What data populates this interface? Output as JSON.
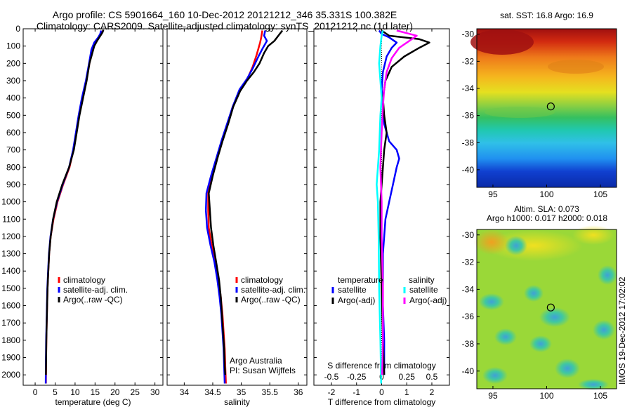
{
  "header": {
    "line1": "Argo profile: CS 5901664_160 10-Dec-2012 20121212_346 35.331S 100.382E",
    "line2": "Climatology: CARS2009. Satellite-adjusted climatology: synTS_20121212.nc (1d later)"
  },
  "footer_credit": {
    "line1": "Argo Australia",
    "line2": "PI: Susan Wijffels"
  },
  "watermark": "IMOS 19-Dec-2012 17:02:02",
  "colors": {
    "climatology": "#ff0000",
    "satellite": "#0000ff",
    "argo": "#000000",
    "salinity_satellite": "#00ffff",
    "salinity_argo": "#ff00ff"
  },
  "chart_data": [
    {
      "type": "line",
      "id": "temperature",
      "xlabel": "temperature (deg C)",
      "ylabel": "",
      "xlim": [
        -3,
        32
      ],
      "ylim": [
        2060,
        0
      ],
      "x_ticks": [
        0,
        5,
        10,
        15,
        20,
        25,
        30
      ],
      "y_ticks": [
        0,
        100,
        200,
        300,
        400,
        500,
        600,
        700,
        800,
        900,
        1000,
        1100,
        1200,
        1300,
        1400,
        1500,
        1600,
        1700,
        1800,
        1900,
        2000
      ],
      "legend": [
        "climatology",
        "satellite-adj. clim.",
        "Argo(..raw -QC)"
      ],
      "series": [
        {
          "name": "climatology",
          "color": "#ff0000",
          "points": [
            [
              17.0,
              10
            ],
            [
              16.6,
              30
            ],
            [
              16.0,
              50
            ],
            [
              15.0,
              80
            ],
            [
              14.3,
              120
            ],
            [
              13.6,
              200
            ],
            [
              12.8,
              300
            ],
            [
              11.8,
              400
            ],
            [
              11.0,
              500
            ],
            [
              10.3,
              600
            ],
            [
              9.6,
              700
            ],
            [
              8.6,
              800
            ],
            [
              7.0,
              900
            ],
            [
              5.6,
              1000
            ],
            [
              4.6,
              1100
            ],
            [
              3.9,
              1200
            ],
            [
              3.5,
              1300
            ],
            [
              3.3,
              1400
            ],
            [
              3.1,
              1500
            ],
            [
              3.0,
              1600
            ],
            [
              2.9,
              1700
            ],
            [
              2.8,
              1800
            ],
            [
              2.75,
              1900
            ],
            [
              2.7,
              2050
            ]
          ]
        },
        {
          "name": "satellite-adj. clim.",
          "color": "#0000ff",
          "points": [
            [
              16.5,
              10
            ],
            [
              16.3,
              30
            ],
            [
              15.8,
              50
            ],
            [
              14.8,
              80
            ],
            [
              14.1,
              120
            ],
            [
              13.5,
              200
            ],
            [
              12.7,
              300
            ],
            [
              11.7,
              400
            ],
            [
              10.9,
              500
            ],
            [
              10.2,
              600
            ],
            [
              9.5,
              700
            ],
            [
              8.5,
              800
            ],
            [
              6.9,
              900
            ],
            [
              5.5,
              1000
            ],
            [
              4.5,
              1100
            ],
            [
              3.85,
              1200
            ],
            [
              3.45,
              1300
            ],
            [
              3.25,
              1400
            ],
            [
              3.05,
              1500
            ],
            [
              2.95,
              1600
            ],
            [
              2.85,
              1700
            ],
            [
              2.75,
              1800
            ],
            [
              2.7,
              1900
            ],
            [
              2.65,
              2050
            ]
          ]
        },
        {
          "name": "Argo(..raw -QC)",
          "color": "#000000",
          "points": [
            [
              17.1,
              5
            ],
            [
              16.9,
              20
            ],
            [
              16.2,
              45
            ],
            [
              15.5,
              70
            ],
            [
              14.8,
              100
            ],
            [
              14.2,
              150
            ],
            [
              13.6,
              200
            ],
            [
              12.9,
              300
            ],
            [
              12.0,
              400
            ],
            [
              11.1,
              500
            ],
            [
              10.4,
              600
            ],
            [
              9.7,
              700
            ],
            [
              8.5,
              800
            ],
            [
              6.8,
              900
            ],
            [
              5.4,
              1000
            ],
            [
              4.5,
              1100
            ],
            [
              3.9,
              1200
            ],
            [
              3.5,
              1300
            ],
            [
              3.3,
              1400
            ],
            [
              3.1,
              1500
            ],
            [
              3.0,
              1600
            ],
            [
              2.9,
              1700
            ],
            [
              2.8,
              1800
            ],
            [
              2.75,
              1900
            ],
            [
              2.7,
              2000
            ]
          ]
        }
      ]
    },
    {
      "type": "line",
      "id": "salinity",
      "xlabel": "salinity",
      "ylabel": "",
      "xlim": [
        33.7,
        36.15
      ],
      "ylim": [
        2060,
        0
      ],
      "x_ticks": [
        34,
        34.5,
        35,
        35.5,
        36
      ],
      "y_ticks": [
        0,
        100,
        200,
        300,
        400,
        500,
        600,
        700,
        800,
        900,
        1000,
        1100,
        1200,
        1300,
        1400,
        1500,
        1600,
        1700,
        1800,
        1900,
        2000
      ],
      "legend": [
        "climatology",
        "satellite-adj. clim.",
        "Argo(..raw -QC)"
      ],
      "series": [
        {
          "name": "climatology",
          "color": "#ff0000",
          "points": [
            [
              35.37,
              10
            ],
            [
              35.35,
              50
            ],
            [
              35.33,
              80
            ],
            [
              35.27,
              150
            ],
            [
              35.2,
              220
            ],
            [
              35.12,
              280
            ],
            [
              34.98,
              350
            ],
            [
              34.85,
              450
            ],
            [
              34.76,
              550
            ],
            [
              34.66,
              650
            ],
            [
              34.57,
              750
            ],
            [
              34.49,
              850
            ],
            [
              34.42,
              950
            ],
            [
              34.42,
              1050
            ],
            [
              34.43,
              1150
            ],
            [
              34.48,
              1250
            ],
            [
              34.55,
              1350
            ],
            [
              34.6,
              1450
            ],
            [
              34.64,
              1550
            ],
            [
              34.67,
              1650
            ],
            [
              34.69,
              1750
            ],
            [
              34.71,
              1850
            ],
            [
              34.72,
              1950
            ],
            [
              34.73,
              2050
            ]
          ]
        },
        {
          "name": "satellite-adj. clim.",
          "color": "#0000ff",
          "points": [
            [
              35.42,
              10
            ],
            [
              35.4,
              40
            ],
            [
              35.45,
              70
            ],
            [
              35.38,
              110
            ],
            [
              35.3,
              160
            ],
            [
              35.2,
              230
            ],
            [
              35.1,
              290
            ],
            [
              34.97,
              350
            ],
            [
              34.85,
              450
            ],
            [
              34.75,
              550
            ],
            [
              34.65,
              650
            ],
            [
              34.56,
              750
            ],
            [
              34.47,
              850
            ],
            [
              34.39,
              950
            ],
            [
              34.38,
              1050
            ],
            [
              34.4,
              1150
            ],
            [
              34.46,
              1250
            ],
            [
              34.53,
              1350
            ],
            [
              34.58,
              1450
            ],
            [
              34.62,
              1550
            ],
            [
              34.65,
              1650
            ],
            [
              34.67,
              1750
            ],
            [
              34.69,
              1850
            ],
            [
              34.7,
              1950
            ],
            [
              34.71,
              2050
            ]
          ]
        },
        {
          "name": "Argo(..raw -QC)",
          "color": "#000000",
          "points": [
            [
              35.72,
              10
            ],
            [
              35.65,
              40
            ],
            [
              35.58,
              70
            ],
            [
              35.47,
              100
            ],
            [
              35.4,
              140
            ],
            [
              35.32,
              200
            ],
            [
              35.22,
              250
            ],
            [
              35.1,
              300
            ],
            [
              34.98,
              360
            ],
            [
              34.86,
              450
            ],
            [
              34.77,
              550
            ],
            [
              34.67,
              650
            ],
            [
              34.58,
              750
            ],
            [
              34.5,
              850
            ],
            [
              34.43,
              950
            ],
            [
              34.45,
              1050
            ],
            [
              34.47,
              1150
            ],
            [
              34.51,
              1250
            ],
            [
              34.56,
              1350
            ],
            [
              34.61,
              1450
            ],
            [
              34.64,
              1550
            ],
            [
              34.66,
              1650
            ],
            [
              34.68,
              1750
            ],
            [
              34.7,
              1850
            ],
            [
              34.71,
              1950
            ],
            [
              34.72,
              2000
            ]
          ]
        }
      ]
    },
    {
      "type": "line",
      "id": "difference",
      "xlabel": "T difference from climatology",
      "top_label": "S difference from climatology",
      "ylabel": "",
      "xlim": [
        -2.7,
        2.7
      ],
      "ylim": [
        2060,
        0
      ],
      "x_ticks": [
        -2,
        -1,
        0,
        1,
        2
      ],
      "s_ticks": [
        -0.5,
        -0.25,
        0,
        0.25,
        0.5
      ],
      "s_tick_labels": [
        "-0.5",
        "-0.25",
        "0",
        "0.25",
        "0.5"
      ],
      "s_scale": 4,
      "y_ticks": [
        0,
        100,
        200,
        300,
        400,
        500,
        600,
        700,
        800,
        900,
        1000,
        1100,
        1200,
        1300,
        1400,
        1500,
        1600,
        1700,
        1800,
        1900,
        2000
      ],
      "legend_headers": [
        "temperature",
        "salinity"
      ],
      "legend": [
        "satellite",
        "Argo(-adj)",
        "satellite",
        "Argo(-adj)"
      ],
      "series": [
        {
          "name": "temperature satellite",
          "color": "#0000ff",
          "points": [
            [
              -0.1,
              10
            ],
            [
              0.0,
              30
            ],
            [
              0.3,
              50
            ],
            [
              0.6,
              80
            ],
            [
              0.4,
              110
            ],
            [
              0.2,
              160
            ],
            [
              0.05,
              250
            ],
            [
              0.0,
              350
            ],
            [
              0.05,
              450
            ],
            [
              0.1,
              550
            ],
            [
              0.3,
              650
            ],
            [
              0.6,
              700
            ],
            [
              0.7,
              750
            ],
            [
              0.6,
              800
            ],
            [
              0.45,
              900
            ],
            [
              0.3,
              1000
            ],
            [
              0.15,
              1100
            ],
            [
              0.05,
              1300
            ],
            [
              0.05,
              1600
            ],
            [
              0.1,
              1800
            ],
            [
              0.1,
              2000
            ]
          ]
        },
        {
          "name": "temperature Argo(-adj)",
          "color": "#000000",
          "points": [
            [
              0.0,
              10
            ],
            [
              0.3,
              40
            ],
            [
              1.5,
              60
            ],
            [
              1.9,
              80
            ],
            [
              1.5,
              110
            ],
            [
              0.9,
              160
            ],
            [
              0.4,
              220
            ],
            [
              0.15,
              300
            ],
            [
              0.05,
              400
            ],
            [
              0.1,
              500
            ],
            [
              0.2,
              600
            ],
            [
              0.1,
              700
            ],
            [
              0.05,
              800
            ],
            [
              0.0,
              900
            ],
            [
              -0.05,
              1000
            ],
            [
              -0.05,
              1200
            ],
            [
              0.0,
              1500
            ],
            [
              0.05,
              1800
            ],
            [
              0.1,
              2000
            ]
          ]
        },
        {
          "name": "salinity satellite",
          "color": "#00ffff",
          "points": [
            [
              0.05,
              10
            ],
            [
              0.0,
              40
            ],
            [
              -0.05,
              100
            ],
            [
              -0.1,
              200
            ],
            [
              -0.05,
              300
            ],
            [
              0.0,
              400
            ],
            [
              -0.05,
              500
            ],
            [
              -0.1,
              700
            ],
            [
              -0.2,
              900
            ],
            [
              -0.15,
              1000
            ],
            [
              -0.12,
              1200
            ],
            [
              -0.1,
              1500
            ],
            [
              -0.05,
              1800
            ],
            [
              -0.02,
              2050
            ]
          ]
        },
        {
          "name": "salinity Argo(-adj)",
          "color": "#ff00ff",
          "points": [
            [
              0.6,
              10
            ],
            [
              1.4,
              40
            ],
            [
              1.1,
              70
            ],
            [
              0.7,
              110
            ],
            [
              0.4,
              170
            ],
            [
              0.2,
              250
            ],
            [
              0.1,
              350
            ],
            [
              0.05,
              450
            ],
            [
              0.0,
              600
            ],
            [
              -0.05,
              800
            ],
            [
              0.0,
              1000
            ],
            [
              0.0,
              1200
            ],
            [
              0.05,
              1500
            ],
            [
              0.05,
              1800
            ],
            [
              0.02,
              2000
            ]
          ]
        }
      ]
    }
  ],
  "sst_map": {
    "title": "sat. SST: 16.8  Argo: 16.9",
    "lon_ticks": [
      95,
      100,
      105
    ],
    "lat_ticks": [
      -30,
      -32,
      -34,
      -36,
      -38,
      -40
    ],
    "lon_range": [
      93.5,
      106.5
    ],
    "lat_range": [
      -41.3,
      -29.6
    ],
    "marker": {
      "lon": 100.382,
      "lat": -35.331
    }
  },
  "sla_map": {
    "title_line1": "Altim. SLA: 0.073",
    "title_line2": "Argo h1000: 0.017  h2000: 0.018",
    "lon_ticks": [
      95,
      100,
      105
    ],
    "lat_ticks": [
      -30,
      -32,
      -34,
      -36,
      -38,
      -40
    ],
    "lon_range": [
      93.5,
      106.5
    ],
    "lat_range": [
      -41.3,
      -29.6
    ],
    "marker": {
      "lon": 100.382,
      "lat": -35.331
    }
  }
}
